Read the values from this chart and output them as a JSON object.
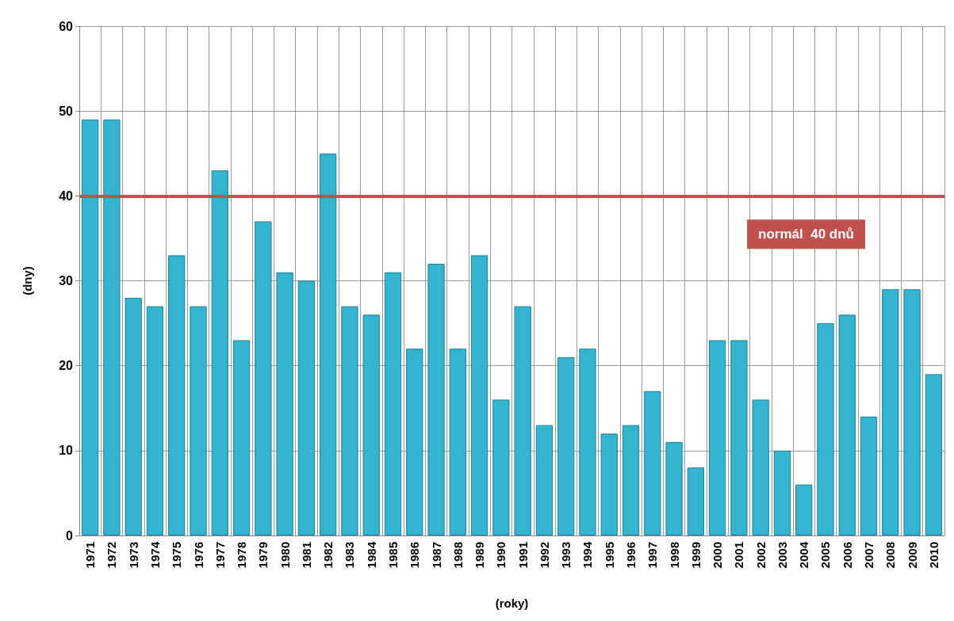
{
  "chart_data": {
    "type": "bar",
    "xlabel": "(roky)",
    "ylabel": "(dny)",
    "categories": [
      "1971",
      "1972",
      "1973",
      "1974",
      "1975",
      "1976",
      "1977",
      "1978",
      "1979",
      "1980",
      "1981",
      "1982",
      "1983",
      "1984",
      "1985",
      "1986",
      "1987",
      "1988",
      "1989",
      "1990",
      "1991",
      "1992",
      "1993",
      "1994",
      "1995",
      "1996",
      "1997",
      "1998",
      "1999",
      "2000",
      "2001",
      "2002",
      "2003",
      "2004",
      "2005",
      "2006",
      "2007",
      "2008",
      "2009",
      "2010"
    ],
    "values": [
      49,
      49,
      28,
      27,
      33,
      27,
      43,
      23,
      37,
      31,
      30,
      45,
      27,
      26,
      31,
      22,
      32,
      22,
      33,
      16,
      27,
      13,
      21,
      22,
      12,
      13,
      17,
      11,
      8,
      23,
      23,
      16,
      10,
      6,
      25,
      26,
      14,
      29,
      29,
      19
    ],
    "color": "#35b4d0",
    "ylim": [
      0,
      60
    ],
    "yticks": [
      0,
      10,
      20,
      30,
      40,
      50,
      60
    ],
    "grid": true,
    "ref_lines": [
      {
        "axis": "y",
        "value": 40,
        "label": "normál  40 dnů",
        "color": "#c0504d"
      }
    ]
  }
}
